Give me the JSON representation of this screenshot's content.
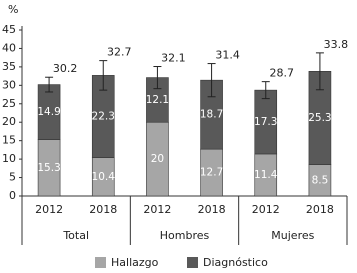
{
  "chart_data": {
    "type": "stacked-bar",
    "y_label": "%",
    "categories": [
      "2012",
      "2018",
      "2012",
      "2018",
      "2012",
      "2018"
    ],
    "groups": [
      "Total",
      "Hombres",
      "Mujeres"
    ],
    "series": [
      {
        "name": "Hallazgo",
        "color": "#a6a6a6",
        "values": [
          15.3,
          10.4,
          20,
          12.7,
          11.4,
          8.5
        ]
      },
      {
        "name": "Diagnóstico",
        "color": "#595959",
        "values": [
          14.9,
          22.3,
          12.1,
          18.7,
          17.3,
          25.3
        ]
      }
    ],
    "totals": [
      30.2,
      32.7,
      32.1,
      31.4,
      28.7,
      33.8
    ],
    "errors": [
      2,
      4,
      3,
      4.5,
      2.3,
      5
    ],
    "ylim": [
      0,
      45
    ],
    "yticks": [
      0,
      5,
      10,
      15,
      20,
      25,
      30,
      35,
      40,
      45
    ],
    "legend": "bottom"
  }
}
